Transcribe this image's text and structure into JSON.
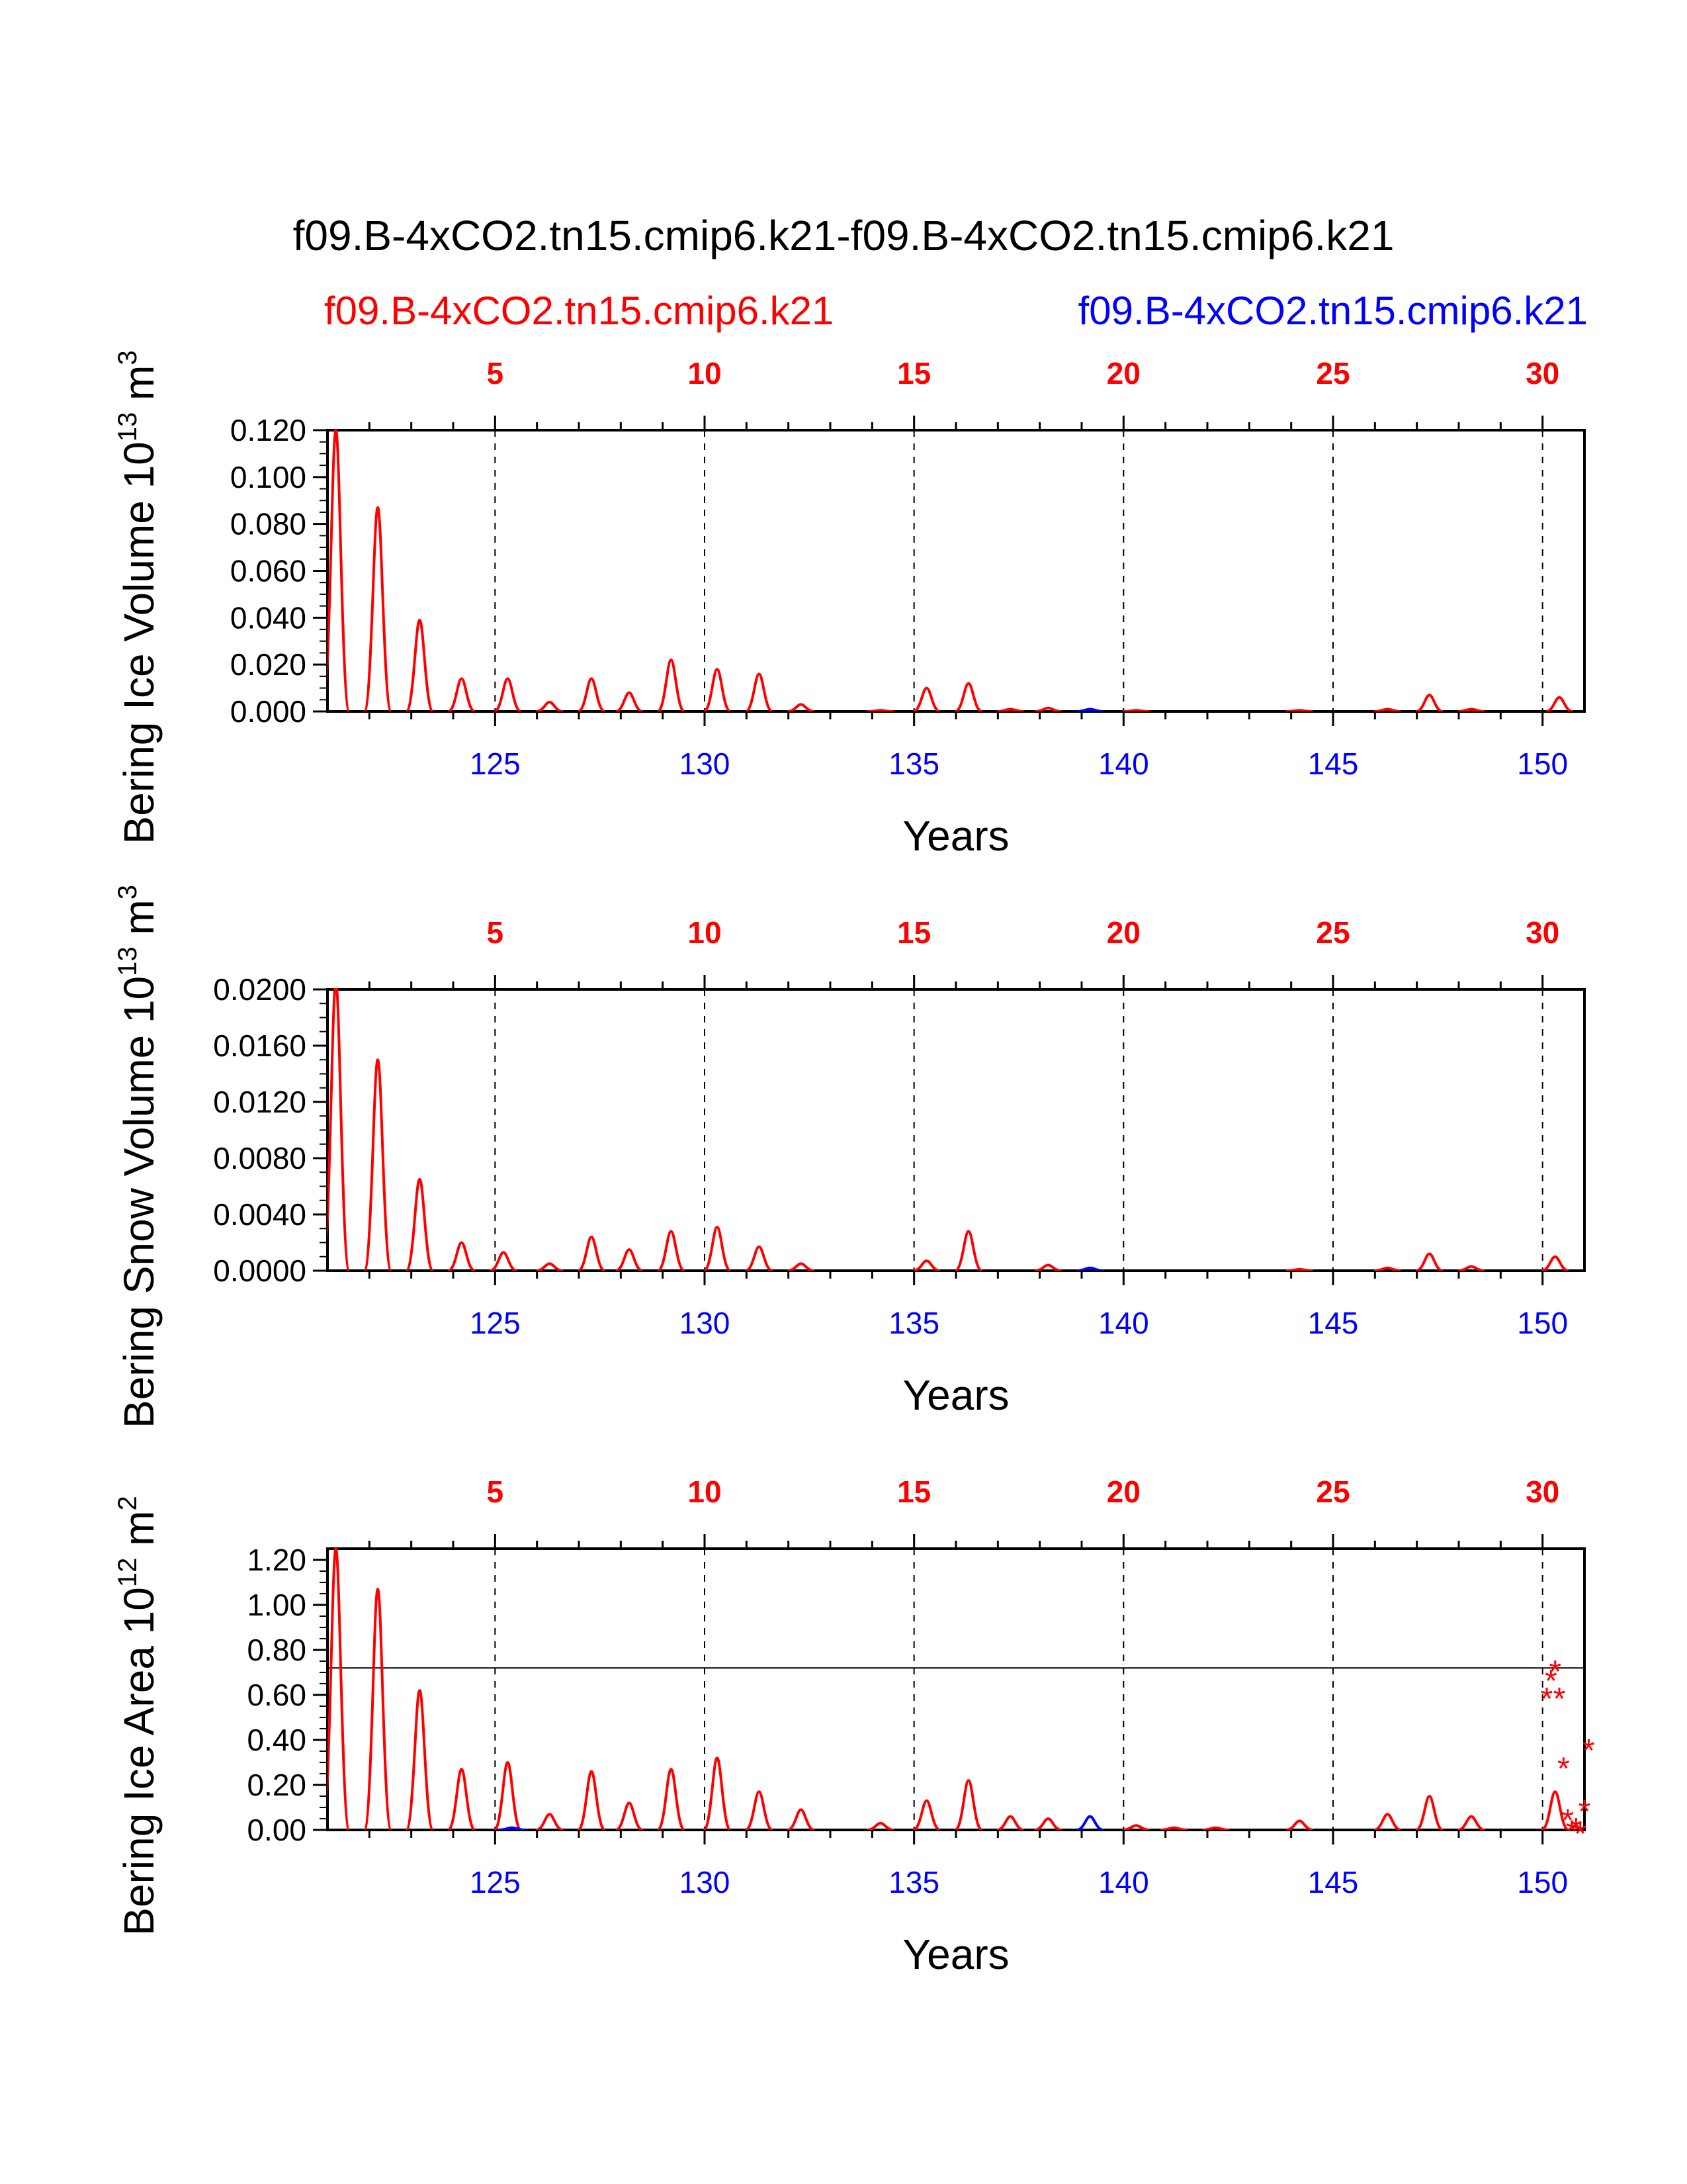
{
  "figure": {
    "title": "f09.B-4xCO2.tn15.cmip6.k21-f09.B-4xCO2.tn15.cmip6.k21",
    "case_red": "f09.B-4xCO2.tn15.cmip6.k21",
    "case_blue": "f09.B-4xCO2.tn15.cmip6.k21",
    "colors": {
      "case1": "#ff0000",
      "case2": "#0000ff",
      "axis": "#000000"
    }
  },
  "chart_data": [
    {
      "type": "line",
      "title": "Bering Ice Volume",
      "ylabel": "Bering Ice Volume 10",
      "ylabel_exp": "13",
      "ylabel_unit": " m",
      "ylabel_unit_exp": "3",
      "xlabel": "Years",
      "xlim": [
        121,
        151
      ],
      "ylim": [
        0,
        0.12
      ],
      "yticks": [
        "0.000",
        "0.020",
        "0.040",
        "0.060",
        "0.080",
        "0.100",
        "0.120"
      ],
      "bottom_ticks": [
        "125",
        "130",
        "135",
        "140",
        "145",
        "150"
      ],
      "top_ticks": [
        "5",
        "10",
        "15",
        "20",
        "25",
        "30"
      ],
      "series": [
        {
          "name": "case1",
          "color": "#ff0000",
          "peaks": [
            [
              121.2,
              0.12
            ],
            [
              122.2,
              0.087
            ],
            [
              123.2,
              0.039
            ],
            [
              124.2,
              0.014
            ],
            [
              125.3,
              0.014
            ],
            [
              126.3,
              0.004
            ],
            [
              127.3,
              0.014
            ],
            [
              128.2,
              0.008
            ],
            [
              129.2,
              0.022
            ],
            [
              130.3,
              0.018
            ],
            [
              131.3,
              0.016
            ],
            [
              132.3,
              0.003
            ],
            [
              134.2,
              0.0005
            ],
            [
              135.3,
              0.01
            ],
            [
              136.3,
              0.012
            ],
            [
              137.3,
              0.001
            ],
            [
              138.2,
              0.0015
            ],
            [
              140.3,
              0.0005
            ],
            [
              144.2,
              0.0005
            ],
            [
              146.3,
              0.001
            ],
            [
              147.3,
              0.007
            ],
            [
              148.3,
              0.001
            ],
            [
              150.4,
              0.006
            ]
          ]
        },
        {
          "name": "case2",
          "color": "#0000ff",
          "peaks": [
            [
              139.2,
              0.001
            ]
          ]
        }
      ]
    },
    {
      "type": "line",
      "title": "Bering Snow Volume",
      "ylabel": "Bering Snow Volume 10",
      "ylabel_exp": "13",
      "ylabel_unit": " m",
      "ylabel_unit_exp": "3",
      "xlabel": "Years",
      "xlim": [
        121,
        151
      ],
      "ylim": [
        0,
        0.02
      ],
      "yticks": [
        "0.0000",
        "0.0040",
        "0.0080",
        "0.0120",
        "0.0160",
        "0.0200"
      ],
      "bottom_ticks": [
        "125",
        "130",
        "135",
        "140",
        "145",
        "150"
      ],
      "top_ticks": [
        "5",
        "10",
        "15",
        "20",
        "25",
        "30"
      ],
      "series": [
        {
          "name": "case1",
          "color": "#ff0000",
          "peaks": [
            [
              121.2,
              0.0205
            ],
            [
              122.2,
              0.015
            ],
            [
              123.2,
              0.0065
            ],
            [
              124.2,
              0.002
            ],
            [
              125.2,
              0.0013
            ],
            [
              126.3,
              0.0005
            ],
            [
              127.3,
              0.0024
            ],
            [
              128.2,
              0.0015
            ],
            [
              129.2,
              0.0028
            ],
            [
              130.3,
              0.0031
            ],
            [
              131.3,
              0.0017
            ],
            [
              132.3,
              0.0005
            ],
            [
              135.3,
              0.0007
            ],
            [
              136.3,
              0.0028
            ],
            [
              138.2,
              0.0004
            ],
            [
              144.2,
              0.0001
            ],
            [
              146.3,
              0.0002
            ],
            [
              147.3,
              0.0012
            ],
            [
              148.3,
              0.0003
            ],
            [
              150.3,
              0.001
            ]
          ]
        },
        {
          "name": "case2",
          "color": "#0000ff",
          "peaks": [
            [
              139.2,
              0.0002
            ]
          ]
        }
      ]
    },
    {
      "type": "line",
      "title": "Bering Ice Area",
      "ylabel": "Bering Ice Area 10",
      "ylabel_exp": "12",
      "ylabel_unit": " m",
      "ylabel_unit_exp": "2",
      "xlabel": "Years",
      "xlim": [
        121,
        151
      ],
      "ylim": [
        0,
        1.25
      ],
      "yticks": [
        "0.00",
        "0.20",
        "0.40",
        "0.60",
        "0.80",
        "1.00",
        "1.20"
      ],
      "bottom_ticks": [
        "125",
        "130",
        "135",
        "140",
        "145",
        "150"
      ],
      "top_ticks": [
        "5",
        "10",
        "15",
        "20",
        "25",
        "30"
      ],
      "reference_line": 0.72,
      "series": [
        {
          "name": "case1",
          "color": "#ff0000",
          "peaks": [
            [
              121.2,
              1.25
            ],
            [
              122.2,
              1.07
            ],
            [
              123.2,
              0.62
            ],
            [
              124.2,
              0.27
            ],
            [
              125.3,
              0.3
            ],
            [
              126.3,
              0.07
            ],
            [
              127.3,
              0.26
            ],
            [
              128.2,
              0.12
            ],
            [
              129.2,
              0.27
            ],
            [
              130.3,
              0.32
            ],
            [
              131.3,
              0.17
            ],
            [
              132.3,
              0.09
            ],
            [
              134.2,
              0.03
            ],
            [
              135.3,
              0.13
            ],
            [
              136.3,
              0.22
            ],
            [
              137.3,
              0.06
            ],
            [
              138.2,
              0.05
            ],
            [
              140.3,
              0.02
            ],
            [
              141.2,
              0.01
            ],
            [
              142.2,
              0.01
            ],
            [
              144.2,
              0.04
            ],
            [
              146.3,
              0.07
            ],
            [
              147.3,
              0.15
            ],
            [
              148.3,
              0.06
            ],
            [
              150.3,
              0.17
            ]
          ]
        },
        {
          "name": "case2",
          "color": "#0000ff",
          "peaks": [
            [
              139.2,
              0.06
            ],
            [
              125.4,
              0.01
            ]
          ]
        }
      ],
      "markers": {
        "color": "#ff0000",
        "symbol": "*",
        "points": [
          [
            150.1,
            0.6
          ],
          [
            150.2,
            0.68
          ],
          [
            150.3,
            0.72
          ],
          [
            150.4,
            0.6
          ],
          [
            150.5,
            0.29
          ],
          [
            150.6,
            0.06
          ],
          [
            150.8,
            0.02
          ],
          [
            151.0,
            0.1
          ],
          [
            150.7,
            0.01
          ],
          [
            150.9,
            0.0
          ],
          [
            151.1,
            0.37
          ]
        ]
      }
    }
  ]
}
